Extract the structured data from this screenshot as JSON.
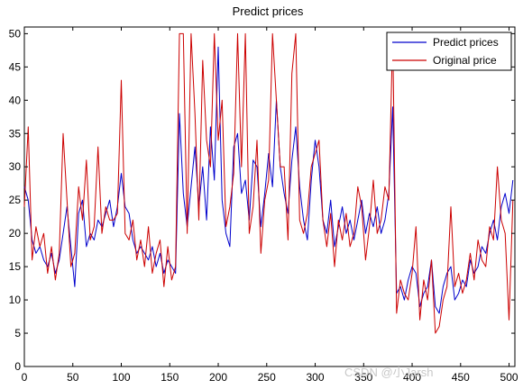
{
  "chart_data": {
    "type": "line",
    "title": "Predict prices",
    "xlabel": "",
    "ylabel": "",
    "xlim": [
      0,
      506
    ],
    "ylim": [
      0,
      51
    ],
    "xticks": [
      0,
      50,
      100,
      150,
      200,
      250,
      300,
      350,
      400,
      450,
      500
    ],
    "yticks": [
      0,
      5,
      10,
      15,
      20,
      25,
      30,
      35,
      40,
      45,
      50
    ],
    "grid": false,
    "legend_position": "top-right",
    "series": [
      {
        "name": "Predict prices",
        "color": "#0000cc",
        "x": [
          0,
          4,
          8,
          12,
          16,
          20,
          24,
          28,
          32,
          36,
          40,
          44,
          48,
          52,
          56,
          60,
          64,
          68,
          72,
          76,
          80,
          84,
          88,
          92,
          96,
          100,
          104,
          108,
          112,
          116,
          120,
          124,
          128,
          132,
          136,
          140,
          144,
          148,
          152,
          156,
          160,
          164,
          168,
          172,
          176,
          180,
          184,
          188,
          192,
          196,
          200,
          204,
          208,
          212,
          216,
          220,
          224,
          228,
          232,
          236,
          240,
          244,
          248,
          252,
          256,
          260,
          264,
          268,
          272,
          276,
          280,
          284,
          288,
          292,
          296,
          300,
          304,
          308,
          312,
          316,
          320,
          324,
          328,
          332,
          336,
          340,
          344,
          348,
          352,
          356,
          360,
          364,
          368,
          372,
          376,
          380,
          384,
          388,
          392,
          396,
          400,
          404,
          408,
          412,
          416,
          420,
          424,
          428,
          432,
          436,
          440,
          444,
          448,
          452,
          456,
          460,
          464,
          468,
          472,
          476,
          480,
          484,
          488,
          492,
          496,
          500,
          504
        ],
        "values": [
          27,
          25,
          19,
          17,
          18,
          16,
          15,
          17,
          14,
          16,
          20,
          24,
          18,
          12,
          23,
          25,
          18,
          20,
          19,
          22,
          21,
          23,
          25,
          21,
          24,
          29,
          24,
          23,
          19,
          17,
          18,
          17,
          16,
          18,
          15,
          17,
          14,
          16,
          15,
          14,
          38,
          26,
          21,
          27,
          33,
          24,
          30,
          22,
          36,
          28,
          48,
          25,
          20,
          18,
          33,
          35,
          26,
          28,
          22,
          31,
          30,
          21,
          26,
          32,
          27,
          40,
          30,
          26,
          23,
          31,
          36,
          27,
          22,
          19,
          28,
          34,
          30,
          22,
          20,
          25,
          18,
          21,
          24,
          20,
          22,
          19,
          22,
          25,
          20,
          23,
          21,
          24,
          20,
          22,
          26,
          39,
          11,
          12,
          10,
          13,
          15,
          14,
          9,
          11,
          12,
          16,
          9,
          8,
          12,
          14,
          15,
          10,
          11,
          13,
          12,
          16,
          14,
          15,
          18,
          17,
          20,
          22,
          19,
          24,
          26,
          23,
          28
        ],
        "line_width": 1
      },
      {
        "name": "Original price",
        "color": "#cc0000",
        "x": [
          0,
          4,
          8,
          12,
          16,
          20,
          24,
          28,
          32,
          36,
          40,
          44,
          48,
          52,
          56,
          60,
          64,
          68,
          72,
          76,
          80,
          84,
          88,
          92,
          96,
          100,
          104,
          108,
          112,
          116,
          120,
          124,
          128,
          132,
          136,
          140,
          144,
          148,
          152,
          156,
          160,
          164,
          168,
          172,
          176,
          180,
          184,
          188,
          192,
          196,
          200,
          204,
          208,
          212,
          216,
          220,
          224,
          228,
          232,
          236,
          240,
          244,
          248,
          252,
          256,
          260,
          264,
          268,
          272,
          276,
          280,
          284,
          288,
          292,
          296,
          300,
          304,
          308,
          312,
          316,
          320,
          324,
          328,
          332,
          336,
          340,
          344,
          348,
          352,
          356,
          360,
          364,
          368,
          372,
          376,
          380,
          384,
          388,
          392,
          396,
          400,
          404,
          408,
          412,
          416,
          420,
          424,
          428,
          432,
          436,
          440,
          444,
          448,
          452,
          456,
          460,
          464,
          468,
          472,
          476,
          480,
          484,
          488,
          492,
          496,
          500,
          504
        ],
        "values": [
          24,
          36,
          16,
          21,
          18,
          20,
          14,
          18,
          13,
          17,
          35,
          25,
          15,
          17,
          27,
          22,
          31,
          19,
          21,
          33,
          20,
          24,
          22,
          22,
          23,
          43,
          20,
          19,
          22,
          16,
          19,
          15,
          21,
          14,
          17,
          19,
          12,
          18,
          13,
          15,
          50,
          50,
          20,
          50,
          38,
          22,
          46,
          34,
          30,
          50,
          34,
          40,
          21,
          24,
          29,
          50,
          30,
          50,
          20,
          24,
          34,
          17,
          25,
          28,
          50,
          40,
          30,
          30,
          19,
          44,
          50,
          22,
          20,
          23,
          30,
          32,
          34,
          22,
          18,
          23,
          15,
          22,
          19,
          23,
          18,
          20,
          27,
          24,
          16,
          21,
          28,
          20,
          22,
          27,
          25,
          50,
          8,
          13,
          11,
          10,
          14,
          21,
          7,
          13,
          10,
          16,
          5,
          6,
          10,
          12,
          24,
          12,
          14,
          11,
          13,
          17,
          13,
          19,
          16,
          15,
          21,
          19,
          30,
          22,
          20,
          7,
          25
        ],
        "line_width": 1
      }
    ]
  },
  "watermark": "CSDN @小Jarsh"
}
